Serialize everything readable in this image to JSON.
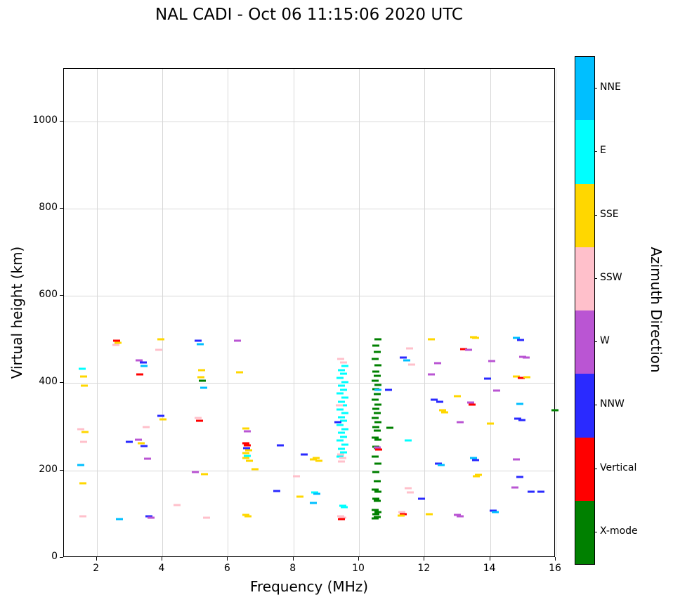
{
  "chart_data": {
    "type": "scatter",
    "title": "NAL CADI - Oct 06 11:15:06 2020 UTC",
    "xlabel": "Frequency (MHz)",
    "ylabel": "Virtual height (km)",
    "colorbar_label": "Azimuth Direction",
    "xlim": [
      1,
      16
    ],
    "ylim": [
      0,
      1120
    ],
    "xticks": [
      2,
      4,
      6,
      8,
      10,
      12,
      14,
      16
    ],
    "yticks": [
      0,
      200,
      400,
      600,
      800,
      1000
    ],
    "grid": true,
    "marker_style": "horizontal-dash",
    "legend_position": "right-colorbar",
    "directions": [
      {
        "label": "NNE",
        "color": "#00BFFF"
      },
      {
        "label": "E",
        "color": "#00FFFF"
      },
      {
        "label": "SSE",
        "color": "#FFD700"
      },
      {
        "label": "SSW",
        "color": "#FFC0CB"
      },
      {
        "label": "W",
        "color": "#BA55D3"
      },
      {
        "label": "NNW",
        "color": "#2A2AFF"
      },
      {
        "label": "Vertical",
        "color": "#FF0000"
      },
      {
        "label": "X-mode",
        "color": "#008000"
      }
    ],
    "points": [
      [
        1.55,
        433,
        "E"
      ],
      [
        1.6,
        415,
        "SSE"
      ],
      [
        1.62,
        394,
        "SSE"
      ],
      [
        1.52,
        295,
        "SSW"
      ],
      [
        1.6,
        266,
        "SSW"
      ],
      [
        1.65,
        288,
        "SSE"
      ],
      [
        1.52,
        213,
        "NNE"
      ],
      [
        1.58,
        170,
        "SSE"
      ],
      [
        1.57,
        95,
        "SSW"
      ],
      [
        2.6,
        498,
        "Vertical"
      ],
      [
        2.65,
        492,
        "SSE"
      ],
      [
        2.58,
        487,
        "SSW"
      ],
      [
        2.7,
        88,
        "NNE"
      ],
      [
        3.0,
        265,
        "NNW"
      ],
      [
        3.3,
        452,
        "W"
      ],
      [
        3.42,
        447,
        "NNW"
      ],
      [
        3.32,
        420,
        "Vertical"
      ],
      [
        3.45,
        440,
        "NNE"
      ],
      [
        3.5,
        300,
        "SSW"
      ],
      [
        3.28,
        270,
        "W"
      ],
      [
        3.36,
        263,
        "SSE"
      ],
      [
        3.44,
        256,
        "NNW"
      ],
      [
        3.55,
        227,
        "W"
      ],
      [
        3.6,
        95,
        "NNW"
      ],
      [
        3.66,
        92,
        "W"
      ],
      [
        3.95,
        500,
        "SSE"
      ],
      [
        3.9,
        477,
        "SSW"
      ],
      [
        3.96,
        325,
        "NNW"
      ],
      [
        4.02,
        317,
        "SSE"
      ],
      [
        4.45,
        120,
        "SSW"
      ],
      [
        5.1,
        497,
        "NNW"
      ],
      [
        5.16,
        489,
        "NNE"
      ],
      [
        5.2,
        430,
        "SSE"
      ],
      [
        5.18,
        413,
        "SSE"
      ],
      [
        5.22,
        406,
        "X-mode"
      ],
      [
        5.26,
        390,
        "NNE"
      ],
      [
        5.1,
        320,
        "SSW"
      ],
      [
        5.13,
        314,
        "Vertical"
      ],
      [
        5.0,
        196,
        "W"
      ],
      [
        5.28,
        192,
        "SSE"
      ],
      [
        5.35,
        92,
        "SSW"
      ],
      [
        6.3,
        497,
        "W"
      ],
      [
        6.36,
        425,
        "SSE"
      ],
      [
        6.55,
        296,
        "SSE"
      ],
      [
        6.6,
        290,
        "W"
      ],
      [
        6.54,
        263,
        "Vertical"
      ],
      [
        6.6,
        257,
        "Vertical"
      ],
      [
        6.58,
        251,
        "NNW"
      ],
      [
        6.63,
        247,
        "SSE"
      ],
      [
        6.55,
        240,
        "SSE"
      ],
      [
        6.6,
        233,
        "E"
      ],
      [
        6.56,
        228,
        "SSE"
      ],
      [
        6.66,
        222,
        "SSE"
      ],
      [
        6.82,
        203,
        "SSE"
      ],
      [
        6.56,
        98,
        "SSE"
      ],
      [
        6.62,
        95,
        "SSE"
      ],
      [
        7.6,
        258,
        "NNW"
      ],
      [
        7.5,
        153,
        "NNW"
      ],
      [
        8.1,
        186,
        "SSW"
      ],
      [
        8.2,
        140,
        "SSE"
      ],
      [
        8.33,
        237,
        "NNW"
      ],
      [
        8.6,
        226,
        "SSE"
      ],
      [
        8.7,
        229,
        "SSE"
      ],
      [
        8.77,
        222,
        "SSE"
      ],
      [
        8.66,
        150,
        "E"
      ],
      [
        8.72,
        147,
        "NNE"
      ],
      [
        8.6,
        125,
        "NNE"
      ],
      [
        9.42,
        232,
        "E"
      ],
      [
        9.53,
        241,
        "E"
      ],
      [
        9.47,
        250,
        "E"
      ],
      [
        9.57,
        259,
        "E"
      ],
      [
        9.42,
        268,
        "E"
      ],
      [
        9.53,
        277,
        "E"
      ],
      [
        9.47,
        286,
        "E"
      ],
      [
        9.57,
        295,
        "E"
      ],
      [
        9.42,
        304,
        "E"
      ],
      [
        9.53,
        313,
        "E"
      ],
      [
        9.47,
        322,
        "E"
      ],
      [
        9.57,
        331,
        "E"
      ],
      [
        9.42,
        340,
        "E"
      ],
      [
        9.53,
        349,
        "E"
      ],
      [
        9.47,
        358,
        "E"
      ],
      [
        9.57,
        367,
        "E"
      ],
      [
        9.42,
        376,
        "E"
      ],
      [
        9.53,
        385,
        "E"
      ],
      [
        9.47,
        394,
        "E"
      ],
      [
        9.57,
        403,
        "E"
      ],
      [
        9.42,
        412,
        "E"
      ],
      [
        9.53,
        421,
        "E"
      ],
      [
        9.47,
        430,
        "E"
      ],
      [
        9.57,
        439,
        "E"
      ],
      [
        9.45,
        455,
        "SSW"
      ],
      [
        9.52,
        447,
        "SSW"
      ],
      [
        9.4,
        350,
        "SSW"
      ],
      [
        9.44,
        237,
        "SSW"
      ],
      [
        9.5,
        228,
        "SSW"
      ],
      [
        9.46,
        221,
        "SSW"
      ],
      [
        9.36,
        310,
        "NNW"
      ],
      [
        9.5,
        119,
        "E"
      ],
      [
        9.56,
        116,
        "E"
      ],
      [
        9.44,
        95,
        "SSW"
      ],
      [
        9.5,
        92,
        "SSW"
      ],
      [
        9.47,
        89,
        "Vertical"
      ],
      [
        10.5,
        90,
        "X-mode"
      ],
      [
        10.56,
        94,
        "X-mode"
      ],
      [
        10.52,
        99,
        "X-mode"
      ],
      [
        10.58,
        104,
        "X-mode"
      ],
      [
        10.5,
        109,
        "X-mode"
      ],
      [
        10.56,
        131,
        "X-mode"
      ],
      [
        10.52,
        135,
        "X-mode"
      ],
      [
        10.58,
        152,
        "X-mode"
      ],
      [
        10.5,
        156,
        "X-mode"
      ],
      [
        10.56,
        176,
        "X-mode"
      ],
      [
        10.52,
        196,
        "X-mode"
      ],
      [
        10.58,
        216,
        "X-mode"
      ],
      [
        10.5,
        231,
        "X-mode"
      ],
      [
        10.56,
        251,
        "X-mode"
      ],
      [
        10.52,
        255,
        "X-mode"
      ],
      [
        10.58,
        271,
        "X-mode"
      ],
      [
        10.5,
        275,
        "X-mode"
      ],
      [
        10.56,
        291,
        "X-mode"
      ],
      [
        10.52,
        300,
        "X-mode"
      ],
      [
        10.58,
        311,
        "X-mode"
      ],
      [
        10.5,
        321,
        "X-mode"
      ],
      [
        10.56,
        331,
        "X-mode"
      ],
      [
        10.52,
        341,
        "X-mode"
      ],
      [
        10.58,
        351,
        "X-mode"
      ],
      [
        10.5,
        362,
        "X-mode"
      ],
      [
        10.56,
        375,
        "X-mode"
      ],
      [
        10.52,
        386,
        "X-mode"
      ],
      [
        10.58,
        396,
        "X-mode"
      ],
      [
        10.5,
        406,
        "X-mode"
      ],
      [
        10.56,
        416,
        "X-mode"
      ],
      [
        10.52,
        426,
        "X-mode"
      ],
      [
        10.58,
        441,
        "X-mode"
      ],
      [
        10.5,
        456,
        "X-mode"
      ],
      [
        10.56,
        471,
        "X-mode"
      ],
      [
        10.52,
        486,
        "X-mode"
      ],
      [
        10.58,
        500,
        "X-mode"
      ],
      [
        10.58,
        385,
        "NNE"
      ],
      [
        10.55,
        252,
        "W"
      ],
      [
        10.6,
        248,
        "Vertical"
      ],
      [
        10.9,
        385,
        "NNW"
      ],
      [
        10.95,
        298,
        "X-mode"
      ],
      [
        11.35,
        458,
        "NNW"
      ],
      [
        11.45,
        452,
        "NNE"
      ],
      [
        11.55,
        480,
        "SSW"
      ],
      [
        11.6,
        443,
        "SSW"
      ],
      [
        11.5,
        268,
        "E"
      ],
      [
        11.5,
        159,
        "SSW"
      ],
      [
        11.56,
        150,
        "SSW"
      ],
      [
        11.3,
        104,
        "SSW"
      ],
      [
        11.35,
        100,
        "Vertical"
      ],
      [
        11.28,
        97,
        "SSE"
      ],
      [
        11.9,
        135,
        "NNW"
      ],
      [
        12.2,
        500,
        "SSE"
      ],
      [
        12.4,
        446,
        "W"
      ],
      [
        12.2,
        420,
        "W"
      ],
      [
        12.3,
        362,
        "NNW"
      ],
      [
        12.46,
        358,
        "NNW"
      ],
      [
        12.55,
        338,
        "SSE"
      ],
      [
        12.62,
        333,
        "SSE"
      ],
      [
        12.42,
        215,
        "NNW"
      ],
      [
        12.5,
        212,
        "NNE"
      ],
      [
        12.15,
        100,
        "SSE"
      ],
      [
        13.2,
        478,
        "Vertical"
      ],
      [
        13.35,
        477,
        "W"
      ],
      [
        13.5,
        505,
        "SSE"
      ],
      [
        13.55,
        503,
        "SSE"
      ],
      [
        13.0,
        370,
        "SSE"
      ],
      [
        13.08,
        310,
        "W"
      ],
      [
        13.4,
        356,
        "W"
      ],
      [
        13.46,
        351,
        "Vertical"
      ],
      [
        13.5,
        228,
        "NNE"
      ],
      [
        13.56,
        224,
        "NNW"
      ],
      [
        13.0,
        98,
        "W"
      ],
      [
        13.08,
        95,
        "W"
      ],
      [
        13.58,
        186,
        "SSE"
      ],
      [
        13.64,
        190,
        "SSE"
      ],
      [
        13.92,
        410,
        "NNW"
      ],
      [
        14.05,
        450,
        "W"
      ],
      [
        14.2,
        383,
        "W"
      ],
      [
        14.0,
        307,
        "SSE"
      ],
      [
        14.1,
        108,
        "NNW"
      ],
      [
        14.16,
        105,
        "NNE"
      ],
      [
        14.8,
        503,
        "NNE"
      ],
      [
        14.92,
        499,
        "NNW"
      ],
      [
        15.0,
        461,
        "W"
      ],
      [
        15.1,
        458,
        "W"
      ],
      [
        14.8,
        415,
        "SSE"
      ],
      [
        14.95,
        412,
        "Vertical"
      ],
      [
        15.12,
        413,
        "SSE"
      ],
      [
        14.9,
        353,
        "NNE"
      ],
      [
        14.85,
        318,
        "NNW"
      ],
      [
        14.97,
        315,
        "NNW"
      ],
      [
        14.8,
        225,
        "W"
      ],
      [
        14.9,
        185,
        "NNW"
      ],
      [
        14.75,
        161,
        "W"
      ],
      [
        15.25,
        152,
        "NNW"
      ],
      [
        15.55,
        151,
        "NNW"
      ],
      [
        15.98,
        338,
        "X-mode"
      ]
    ]
  }
}
